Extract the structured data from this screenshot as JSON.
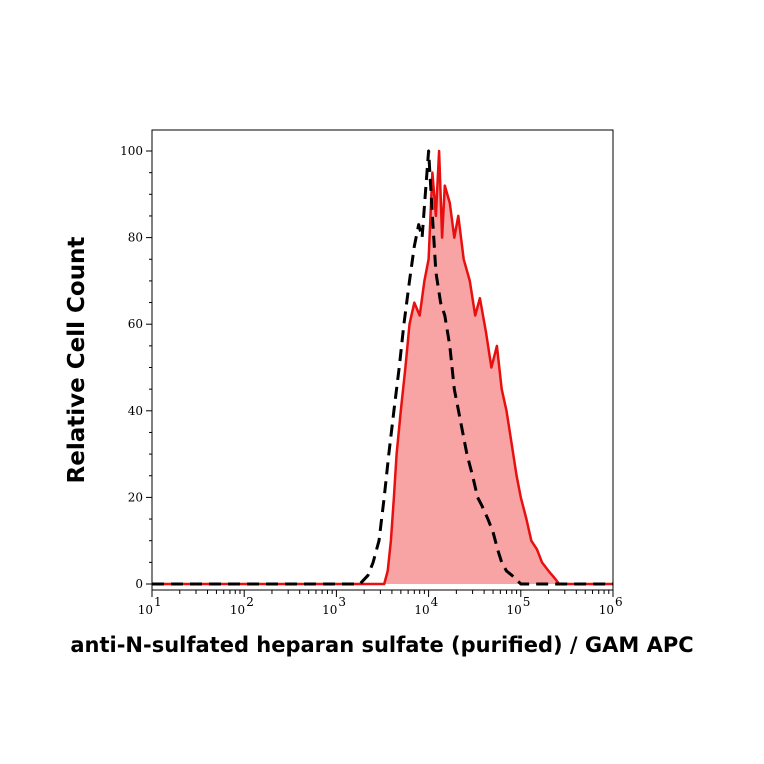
{
  "chart_data": {
    "type": "area",
    "title": "",
    "xlabel": "anti-N-sulfated heparan sulfate (purified) / GAM APC",
    "ylabel": "Relative Cell Count",
    "x_scale": "log",
    "xlim": [
      10,
      1000000
    ],
    "ylim": [
      0,
      105
    ],
    "y_ticks": [
      0,
      20,
      40,
      60,
      80,
      100
    ],
    "x_ticks": [
      {
        "value": 10,
        "base": "10",
        "exp": "1"
      },
      {
        "value": 100,
        "base": "10",
        "exp": "2"
      },
      {
        "value": 1000,
        "base": "10",
        "exp": "3"
      },
      {
        "value": 10000,
        "base": "10",
        "exp": "4"
      },
      {
        "value": 100000,
        "base": "10",
        "exp": "5"
      },
      {
        "value": 1000000,
        "base": "10",
        "exp": "6"
      }
    ],
    "grid": false,
    "legend": "none",
    "series": [
      {
        "style": "filled-solid",
        "color": "#e8100f",
        "fill": "#f8a4a4",
        "points": [
          [
            10,
            0
          ],
          [
            3300,
            0
          ],
          [
            3600,
            3
          ],
          [
            3900,
            10
          ],
          [
            4200,
            20
          ],
          [
            4500,
            30
          ],
          [
            5000,
            40
          ],
          [
            5600,
            50
          ],
          [
            6200,
            60
          ],
          [
            7000,
            65
          ],
          [
            8000,
            62
          ],
          [
            9000,
            70
          ],
          [
            10000,
            75
          ],
          [
            11000,
            95
          ],
          [
            12000,
            85
          ],
          [
            13000,
            100
          ],
          [
            14000,
            80
          ],
          [
            15000,
            92
          ],
          [
            17000,
            88
          ],
          [
            19000,
            80
          ],
          [
            21000,
            85
          ],
          [
            24000,
            75
          ],
          [
            28000,
            70
          ],
          [
            32000,
            62
          ],
          [
            36000,
            66
          ],
          [
            42000,
            58
          ],
          [
            48000,
            50
          ],
          [
            55000,
            55
          ],
          [
            62000,
            45
          ],
          [
            70000,
            40
          ],
          [
            80000,
            32
          ],
          [
            90000,
            25
          ],
          [
            100000,
            20
          ],
          [
            115000,
            15
          ],
          [
            130000,
            10
          ],
          [
            150000,
            8
          ],
          [
            170000,
            5
          ],
          [
            200000,
            3
          ],
          [
            240000,
            1
          ],
          [
            260000,
            0
          ],
          [
            1000000,
            0
          ]
        ]
      },
      {
        "style": "dashed",
        "color": "#000000",
        "points": [
          [
            10,
            0
          ],
          [
            1800,
            0
          ],
          [
            2200,
            2
          ],
          [
            2500,
            5
          ],
          [
            2900,
            10
          ],
          [
            3300,
            20
          ],
          [
            3700,
            30
          ],
          [
            4200,
            40
          ],
          [
            4800,
            50
          ],
          [
            5400,
            60
          ],
          [
            6200,
            70
          ],
          [
            7000,
            78
          ],
          [
            7800,
            83
          ],
          [
            8500,
            80
          ],
          [
            9200,
            90
          ],
          [
            10000,
            100
          ],
          [
            11000,
            85
          ],
          [
            12000,
            72
          ],
          [
            13500,
            65
          ],
          [
            15000,
            62
          ],
          [
            17000,
            55
          ],
          [
            19000,
            45
          ],
          [
            22000,
            38
          ],
          [
            26000,
            30
          ],
          [
            30000,
            25
          ],
          [
            34000,
            20
          ],
          [
            38000,
            18
          ],
          [
            44000,
            15
          ],
          [
            50000,
            12
          ],
          [
            56000,
            8
          ],
          [
            62000,
            5
          ],
          [
            70000,
            3
          ],
          [
            80000,
            2
          ],
          [
            90000,
            1
          ],
          [
            100000,
            0
          ],
          [
            1000000,
            0
          ]
        ]
      }
    ]
  }
}
